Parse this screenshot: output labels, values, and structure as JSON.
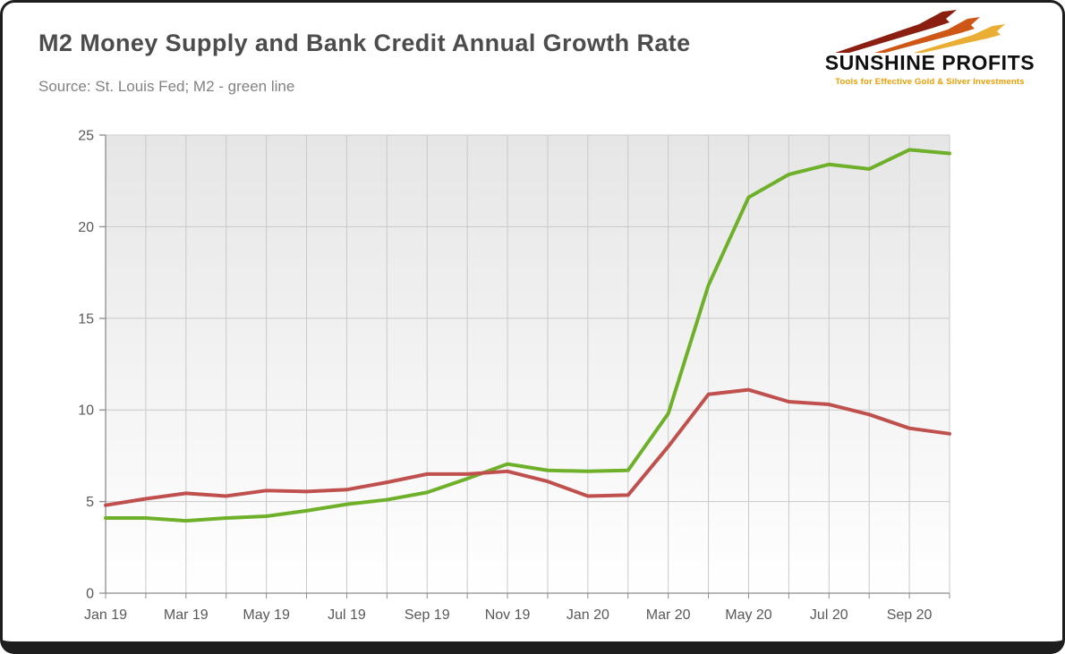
{
  "header": {
    "subtitle": "Source: St. Louis Fed; M2 - green line"
  },
  "logo": {
    "name": "SUNSHINE PROFITS",
    "tagline": "Tools for Effective Gold & Silver Investments"
  },
  "chart_data": {
    "type": "line",
    "title": "M2 Money Supply and Bank Credit Annual Growth Rate",
    "xlabel": "",
    "ylabel": "",
    "x": [
      "Jan 19",
      "Feb 19",
      "Mar 19",
      "Apr 19",
      "May 19",
      "Jun 19",
      "Jul 19",
      "Aug 19",
      "Sep 19",
      "Oct 19",
      "Nov 19",
      "Dec 19",
      "Jan 20",
      "Feb 20",
      "Mar 20",
      "Apr 20",
      "May 20",
      "Jun 20",
      "Jul 20",
      "Aug 20",
      "Sep 20",
      "Oct 20"
    ],
    "x_tick_labels": [
      "Jan 19",
      "Mar 19",
      "May 19",
      "Jul 19",
      "Sep 19",
      "Nov 19",
      "Jan 20",
      "Mar 20",
      "May 20",
      "Jul 20",
      "Sep 20"
    ],
    "x_label_every": 2,
    "ylim": [
      0,
      25
    ],
    "yticks": [
      0,
      5,
      10,
      15,
      20,
      25
    ],
    "grid": true,
    "legend": "none",
    "plot_background": {
      "top": "#e6e6e6",
      "bottom": "#ffffff"
    },
    "gridline_color": "#c9c9c9",
    "axis_color": "#8c8c8c",
    "tick_label_color": "#595959",
    "series": [
      {
        "name": "M2 money supply",
        "color": "#6fb02a",
        "values": [
          4.1,
          4.1,
          3.95,
          4.1,
          4.2,
          4.5,
          4.85,
          5.1,
          5.5,
          6.25,
          7.05,
          6.7,
          6.65,
          6.7,
          9.8,
          16.8,
          21.6,
          22.85,
          23.4,
          23.15,
          24.2,
          24.0
        ]
      },
      {
        "name": "Bank credit",
        "color": "#c0504d",
        "values": [
          4.8,
          5.15,
          5.45,
          5.3,
          5.6,
          5.55,
          5.65,
          6.05,
          6.5,
          6.5,
          6.65,
          6.1,
          5.3,
          5.35,
          8.0,
          10.85,
          11.1,
          10.45,
          10.3,
          9.75,
          9.0,
          8.7
        ]
      }
    ]
  }
}
